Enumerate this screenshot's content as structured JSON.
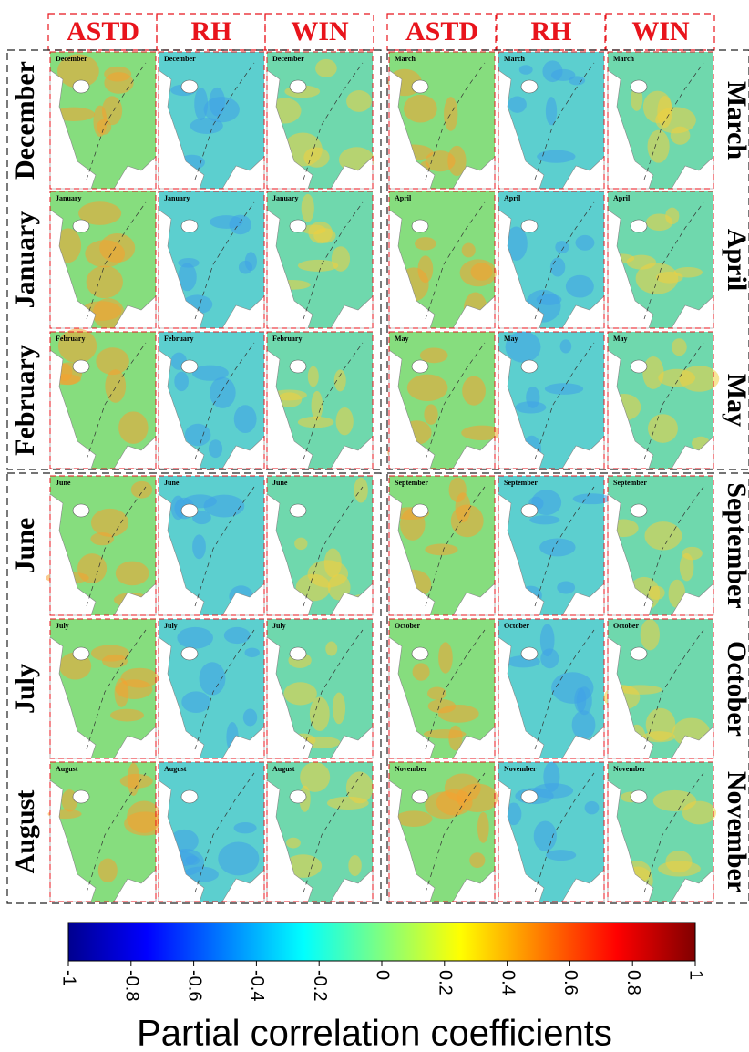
{
  "headers": [
    "ASTD",
    "RH",
    "WIN"
  ],
  "left_rows": [
    "December",
    "January",
    "February",
    "June",
    "July",
    "August"
  ],
  "right_rows": [
    "March",
    "April",
    "May",
    "September",
    "October",
    "November"
  ],
  "colorbar": {
    "label": "Partial correlation coefficients",
    "lim": [
      -1,
      1
    ],
    "ticks": [
      -1,
      -0.8,
      -0.6,
      -0.4,
      -0.2,
      0,
      0.2,
      0.4,
      0.6,
      0.8,
      1
    ]
  }
}
